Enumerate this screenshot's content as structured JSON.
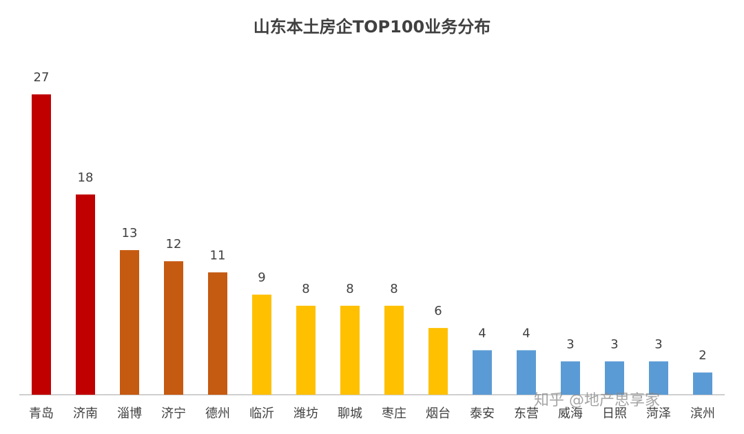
{
  "chart_data": {
    "type": "bar",
    "title": "山东本土房企TOP100业务分布",
    "categories": [
      "青岛",
      "济南",
      "淄博",
      "济宁",
      "德州",
      "临沂",
      "潍坊",
      "聊城",
      "枣庄",
      "烟台",
      "泰安",
      "东营",
      "威海",
      "日照",
      "菏泽",
      "滨州"
    ],
    "values": [
      27,
      18,
      13,
      12,
      11,
      9,
      8,
      8,
      8,
      6,
      4,
      4,
      3,
      3,
      3,
      2
    ],
    "colors": [
      "#c00000",
      "#c00000",
      "#c55a11",
      "#c55a11",
      "#c55a11",
      "#ffc000",
      "#ffc000",
      "#ffc000",
      "#ffc000",
      "#ffc000",
      "#5b9bd5",
      "#5b9bd5",
      "#5b9bd5",
      "#5b9bd5",
      "#5b9bd5",
      "#5b9bd5"
    ],
    "ylim": [
      0,
      27
    ],
    "watermark": "知乎 @地产思享家"
  }
}
